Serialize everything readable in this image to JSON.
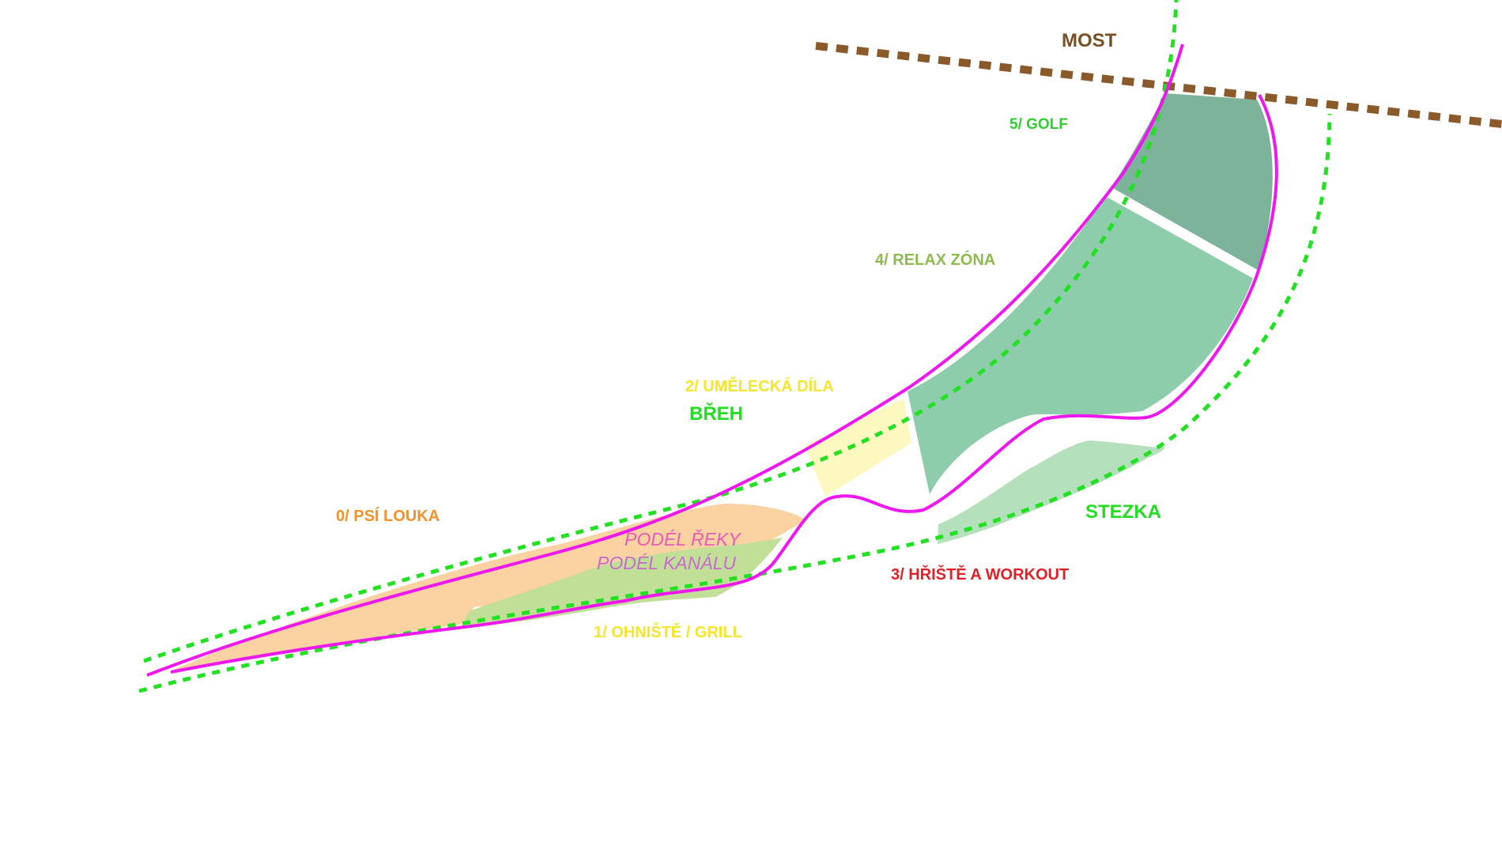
{
  "labels": {
    "most": "MOST",
    "golf": "5/ GOLF",
    "relax": "4/ RELAX ZÓNA",
    "art": "2/ UMĚLECKÁ DÍLA",
    "breh": "BŘEH",
    "psi_louka": "0/ PSÍ LOUKA",
    "podel_reky": "PODÉL ŘEKY",
    "podel_kanalu": "PODÉL KANÁLU",
    "stezka": "STEZKA",
    "hriste": "3/ HŘIŠTĚ A WORKOUT",
    "ohniste": "1/ OHNIŠTĚ / GRILL"
  },
  "colors": {
    "background": "#ffffff",
    "bridge": "#8b5a2b",
    "path_green": "#22e022",
    "outline_magenta": "#ee18ee",
    "zone_golf": "#7db39a",
    "zone_relax": "#8ecdab",
    "zone_art": "#fdf8bf",
    "zone_psi_louka": "#fbd2a2",
    "zone_ohniste": "#c2df98",
    "zone_workout": "#b4e1bb",
    "text_most": "#7a4f22",
    "text_golf": "#33cc33",
    "text_relax": "#8dbb4e",
    "text_art": "#f5e52c",
    "text_breh": "#22dd22",
    "text_psi_louka": "#f4912a",
    "text_podel_reky": "#e85cb4",
    "text_podel_kanalu": "#c86ad0",
    "text_stezka": "#22dd22",
    "text_hriste": "#e41f26",
    "text_ohniste": "#f5e52c"
  }
}
